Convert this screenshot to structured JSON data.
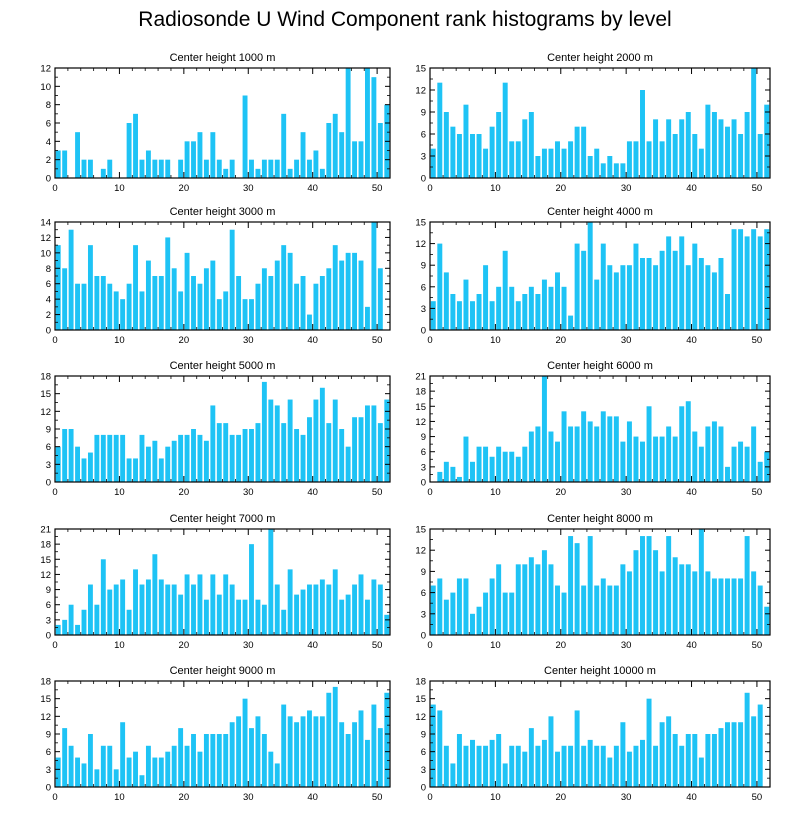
{
  "title": "Radiosonde U Wind Component rank histograms by level",
  "colors": {
    "bar": "#1ec3f5",
    "axis": "#000000",
    "background": "#ffffff"
  },
  "chart_data": [
    {
      "type": "bar",
      "title": "Center height 1000 m",
      "ylim": [
        0,
        12
      ],
      "yticks": [
        0,
        2,
        4,
        6,
        8,
        10,
        12
      ],
      "xlim": [
        0,
        52
      ],
      "xticks": [
        0,
        10,
        20,
        30,
        40,
        50
      ],
      "values": [
        3,
        3,
        0,
        5,
        2,
        2,
        0,
        1,
        2,
        0,
        0,
        6,
        7,
        2,
        3,
        2,
        2,
        2,
        0,
        2,
        4,
        4,
        5,
        2,
        5,
        2,
        1,
        2,
        0,
        9,
        2,
        1,
        2,
        2,
        2,
        7,
        1,
        2,
        5,
        2,
        3,
        1,
        6,
        7,
        5,
        12,
        4,
        4,
        12,
        11,
        6,
        8
      ]
    },
    {
      "type": "bar",
      "title": "Center height 2000 m",
      "ylim": [
        0,
        15
      ],
      "yticks": [
        0,
        3,
        6,
        9,
        12,
        15
      ],
      "xlim": [
        0,
        52
      ],
      "xticks": [
        0,
        10,
        20,
        30,
        40,
        50
      ],
      "values": [
        4,
        13,
        9,
        7,
        6,
        10,
        6,
        6,
        4,
        7,
        9,
        13,
        5,
        5,
        8,
        9,
        3,
        4,
        4,
        5,
        4,
        5,
        7,
        7,
        3,
        4,
        2,
        3,
        2,
        2,
        5,
        5,
        12,
        5,
        8,
        5,
        8,
        6,
        8,
        9,
        6,
        4,
        10,
        9,
        8,
        7,
        8,
        6,
        9,
        15,
        6,
        10
      ]
    },
    {
      "type": "bar",
      "title": "Center height 3000 m",
      "ylim": [
        0,
        14
      ],
      "yticks": [
        0,
        2,
        4,
        6,
        8,
        10,
        12,
        14
      ],
      "xlim": [
        0,
        52
      ],
      "xticks": [
        0,
        10,
        20,
        30,
        40,
        50
      ],
      "values": [
        11,
        8,
        13,
        6,
        6,
        11,
        7,
        7,
        6,
        5,
        4,
        6,
        11,
        5,
        9,
        7,
        7,
        12,
        8,
        5,
        10,
        7,
        6,
        8,
        9,
        4,
        5,
        13,
        7,
        4,
        4,
        6,
        8,
        7,
        9,
        11,
        10,
        6,
        7,
        2,
        6,
        7,
        8,
        11,
        9,
        10,
        10,
        9,
        3,
        14,
        8,
        0
      ]
    },
    {
      "type": "bar",
      "title": "Center height 4000 m",
      "ylim": [
        0,
        15
      ],
      "yticks": [
        0,
        3,
        6,
        9,
        12,
        15
      ],
      "xlim": [
        0,
        52
      ],
      "xticks": [
        0,
        10,
        20,
        30,
        40,
        50
      ],
      "values": [
        4,
        12,
        8,
        5,
        4,
        7,
        4,
        5,
        9,
        4,
        6,
        11,
        6,
        4,
        5,
        6,
        5,
        7,
        6,
        8,
        6,
        2,
        12,
        11,
        15,
        7,
        12,
        9,
        8,
        9,
        9,
        12,
        10,
        10,
        9,
        11,
        13,
        11,
        13,
        9,
        12,
        10,
        9,
        8,
        10,
        5,
        14,
        14,
        13,
        14,
        13,
        14
      ]
    },
    {
      "type": "bar",
      "title": "Center height 5000 m",
      "ylim": [
        0,
        18
      ],
      "yticks": [
        0,
        3,
        6,
        9,
        12,
        15,
        18
      ],
      "xlim": [
        0,
        52
      ],
      "xticks": [
        0,
        10,
        20,
        30,
        40,
        50
      ],
      "values": [
        6,
        9,
        9,
        6,
        4,
        5,
        8,
        8,
        8,
        8,
        8,
        4,
        4,
        8,
        6,
        7,
        4,
        6,
        7,
        8,
        8,
        9,
        8,
        7,
        13,
        10,
        10,
        8,
        8,
        9,
        9,
        10,
        17,
        14,
        13,
        10,
        14,
        9,
        8,
        11,
        14,
        16,
        10,
        14,
        9,
        6,
        11,
        11,
        13,
        13,
        10,
        14
      ]
    },
    {
      "type": "bar",
      "title": "Center height 6000 m",
      "ylim": [
        0,
        21
      ],
      "yticks": [
        0,
        3,
        6,
        9,
        12,
        15,
        18,
        21
      ],
      "xlim": [
        0,
        52
      ],
      "xticks": [
        0,
        10,
        20,
        30,
        40,
        50
      ],
      "values": [
        0,
        2,
        4,
        3,
        1,
        9,
        4,
        7,
        7,
        5,
        7,
        6,
        6,
        5,
        7,
        10,
        11,
        21,
        10,
        8,
        14,
        11,
        11,
        14,
        12,
        11,
        14,
        13,
        13,
        8,
        12,
        9,
        8,
        15,
        9,
        9,
        11,
        9,
        15,
        16,
        10,
        7,
        11,
        12,
        11,
        3,
        7,
        8,
        7,
        11,
        4,
        6
      ]
    },
    {
      "type": "bar",
      "title": "Center height 7000 m",
      "ylim": [
        0,
        21
      ],
      "yticks": [
        0,
        3,
        6,
        9,
        12,
        15,
        18,
        21
      ],
      "xlim": [
        0,
        52
      ],
      "xticks": [
        0,
        10,
        20,
        30,
        40,
        50
      ],
      "values": [
        2,
        3,
        6,
        2,
        5,
        10,
        6,
        15,
        9,
        10,
        11,
        5,
        13,
        10,
        11,
        16,
        11,
        10,
        10,
        8,
        12,
        10,
        12,
        7,
        12,
        8,
        12,
        10,
        7,
        7,
        18,
        7,
        6,
        21,
        10,
        5,
        13,
        8,
        9,
        10,
        10,
        11,
        10,
        13,
        7,
        8,
        10,
        12,
        7,
        11,
        10,
        4
      ]
    },
    {
      "type": "bar",
      "title": "Center height 8000 m",
      "ylim": [
        0,
        15
      ],
      "yticks": [
        0,
        3,
        6,
        9,
        12,
        15
      ],
      "xlim": [
        0,
        52
      ],
      "xticks": [
        0,
        10,
        20,
        30,
        40,
        50
      ],
      "values": [
        7,
        8,
        5,
        6,
        8,
        8,
        3,
        4,
        6,
        8,
        10,
        6,
        6,
        10,
        10,
        11,
        10,
        12,
        10,
        7,
        6,
        14,
        13,
        7,
        14,
        7,
        8,
        7,
        7,
        10,
        9,
        12,
        14,
        14,
        12,
        9,
        14,
        11,
        10,
        10,
        9,
        15,
        9,
        8,
        8,
        8,
        8,
        8,
        14,
        9,
        7,
        4
      ]
    },
    {
      "type": "bar",
      "title": "Center height 9000 m",
      "ylim": [
        0,
        18
      ],
      "yticks": [
        0,
        3,
        6,
        9,
        12,
        15,
        18
      ],
      "xlim": [
        0,
        52
      ],
      "xticks": [
        0,
        10,
        20,
        30,
        40,
        50
      ],
      "values": [
        5,
        10,
        7,
        5,
        4,
        9,
        3,
        7,
        7,
        3,
        11,
        5,
        6,
        2,
        7,
        5,
        5,
        6,
        7,
        10,
        7,
        9,
        6,
        9,
        9,
        9,
        9,
        11,
        12,
        15,
        10,
        12,
        9,
        6,
        4,
        14,
        12,
        11,
        12,
        13,
        12,
        12,
        16,
        17,
        11,
        9,
        11,
        13,
        8,
        14,
        10,
        16
      ]
    },
    {
      "type": "bar",
      "title": "Center height 10000 m",
      "ylim": [
        0,
        18
      ],
      "yticks": [
        0,
        3,
        6,
        9,
        12,
        15,
        18
      ],
      "xlim": [
        0,
        52
      ],
      "xticks": [
        0,
        10,
        20,
        30,
        40,
        50
      ],
      "values": [
        14,
        13,
        7,
        4,
        9,
        7,
        8,
        7,
        7,
        8,
        9,
        4,
        7,
        7,
        6,
        10,
        7,
        8,
        12,
        6,
        7,
        7,
        13,
        7,
        8,
        7,
        7,
        5,
        7,
        11,
        6,
        7,
        8,
        15,
        7,
        11,
        12,
        9,
        7,
        9,
        9,
        5,
        9,
        9,
        10,
        11,
        11,
        11,
        16,
        12,
        14,
        0
      ]
    }
  ]
}
